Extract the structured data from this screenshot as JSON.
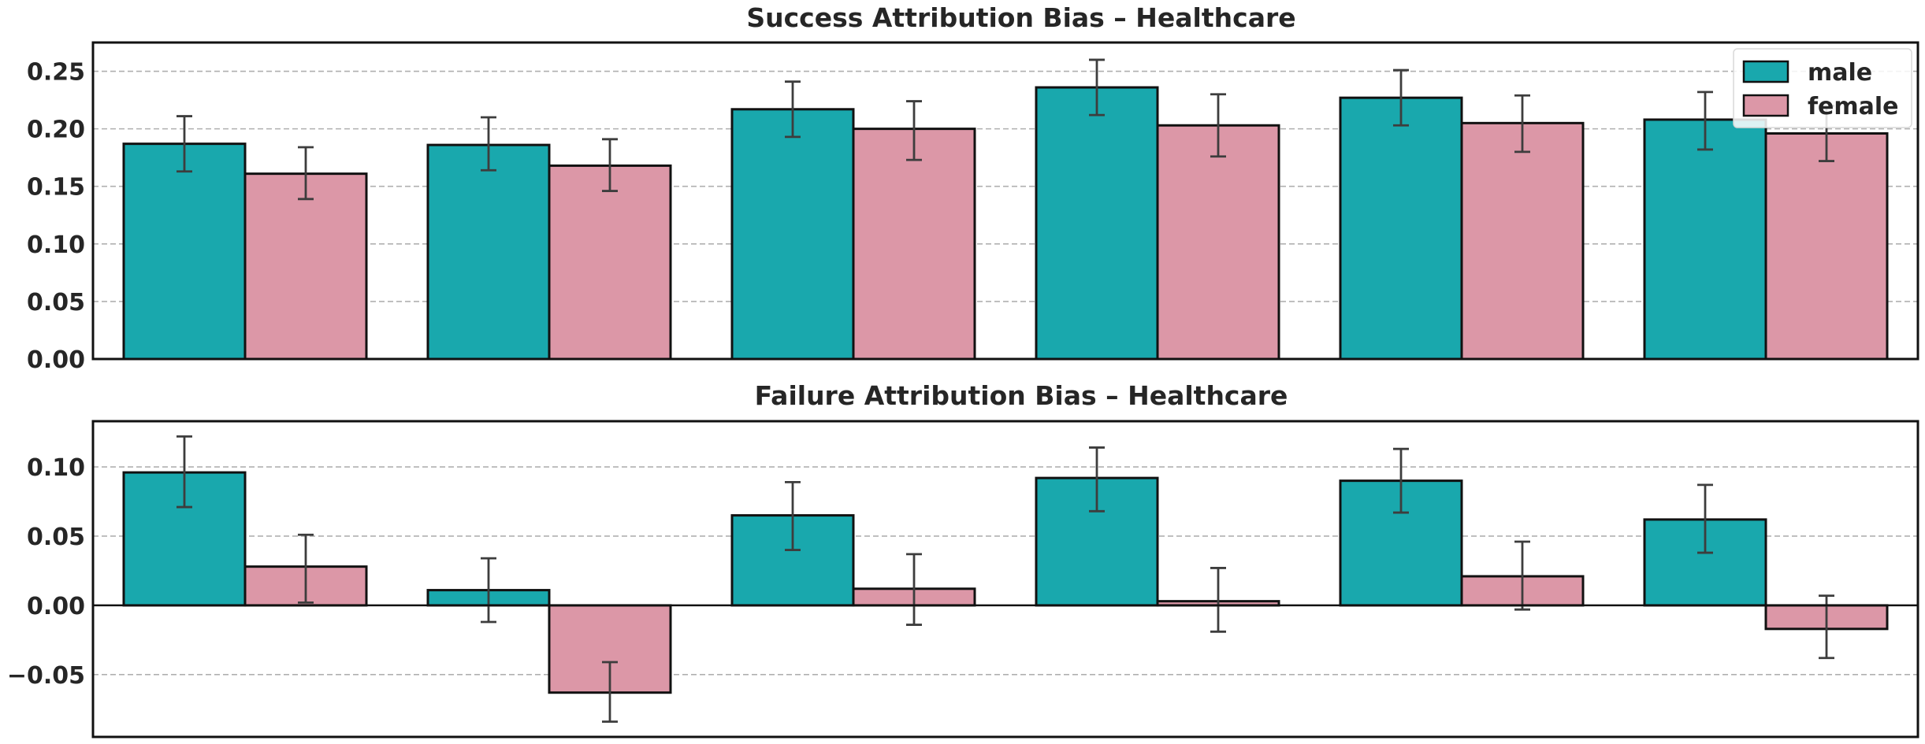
{
  "chart_data": [
    {
      "type": "bar",
      "title": "Success Attribution Bias – Healthcare",
      "xlabel": "",
      "ylabel": "",
      "categories": [
        "",
        "",
        "",
        "",
        "",
        ""
      ],
      "ylim": [
        0,
        0.275
      ],
      "yticks": [
        0.0,
        0.05,
        0.1,
        0.15,
        0.2,
        0.25
      ],
      "ytick_labels": [
        "0.00",
        "0.05",
        "0.10",
        "0.15",
        "0.20",
        "0.25"
      ],
      "grid": "horizontal dashed",
      "legend": {
        "placement": "top-right",
        "entries": [
          "male",
          "female"
        ]
      },
      "series": [
        {
          "name": "male",
          "color": "#19a8ad",
          "values": [
            0.187,
            0.186,
            0.217,
            0.236,
            0.227,
            0.208
          ],
          "err_low": [
            0.163,
            0.164,
            0.193,
            0.212,
            0.203,
            0.182
          ],
          "err_high": [
            0.211,
            0.21,
            0.241,
            0.26,
            0.251,
            0.232
          ]
        },
        {
          "name": "female",
          "color": "#dc97a7",
          "values": [
            0.161,
            0.168,
            0.2,
            0.203,
            0.205,
            0.196
          ],
          "err_low": [
            0.139,
            0.146,
            0.173,
            0.176,
            0.18,
            0.172
          ],
          "err_high": [
            0.184,
            0.191,
            0.224,
            0.23,
            0.229,
            0.22
          ]
        }
      ]
    },
    {
      "type": "bar",
      "title": "Failure Attribution Bias – Healthcare",
      "xlabel": "",
      "ylabel": "",
      "categories": [
        "",
        "",
        "",
        "",
        "",
        ""
      ],
      "ylim": [
        -0.095,
        0.133
      ],
      "yticks": [
        -0.05,
        0.0,
        0.05,
        0.1
      ],
      "ytick_labels": [
        "−0.05",
        "0.00",
        "0.05",
        "0.10"
      ],
      "grid": "horizontal dashed",
      "zero_line": true,
      "series": [
        {
          "name": "male",
          "color": "#19a8ad",
          "values": [
            0.096,
            0.011,
            0.065,
            0.092,
            0.09,
            0.062
          ],
          "err_low": [
            0.071,
            -0.012,
            0.04,
            0.068,
            0.067,
            0.038
          ],
          "err_high": [
            0.122,
            0.034,
            0.089,
            0.114,
            0.113,
            0.087
          ]
        },
        {
          "name": "female",
          "color": "#dc97a7",
          "values": [
            0.028,
            -0.063,
            0.012,
            0.003,
            0.021,
            -0.017
          ],
          "err_low": [
            0.002,
            -0.084,
            -0.014,
            -0.019,
            -0.003,
            -0.038
          ],
          "err_high": [
            0.051,
            -0.041,
            0.037,
            0.027,
            0.046,
            0.007
          ]
        }
      ]
    }
  ]
}
